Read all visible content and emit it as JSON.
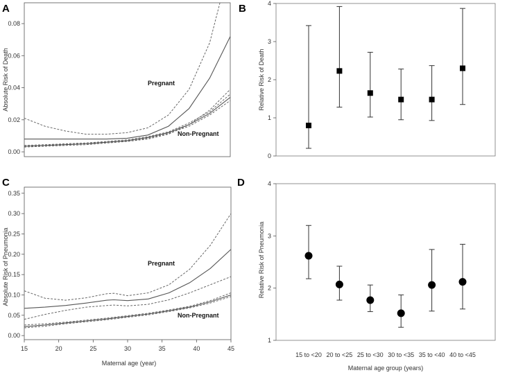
{
  "chart_data": [
    {
      "panel": "A",
      "type": "line",
      "ylabel": "Absolute Risk of Death",
      "xlabel": "",
      "x_ticks": [],
      "y_ticks": [
        "0.00",
        "0.02",
        "0.04",
        "0.06",
        "0.08"
      ],
      "xlim": [
        15,
        45
      ],
      "ylim": [
        -0.003,
        0.093
      ],
      "annotations": [
        "Pregnant",
        "Non-Pregnant"
      ],
      "series": [
        {
          "name": "Pregnant",
          "style": "solid",
          "x": [
            15,
            18,
            21,
            24,
            27,
            30,
            33,
            36,
            39,
            42,
            45
          ],
          "y": [
            0.008,
            0.008,
            0.008,
            0.008,
            0.008,
            0.0085,
            0.0105,
            0.016,
            0.027,
            0.046,
            0.072
          ]
        },
        {
          "name": "Pregnant upper CI",
          "style": "dashed",
          "x": [
            15,
            18,
            21,
            24,
            27,
            30,
            33,
            36,
            39,
            42,
            43.5
          ],
          "y": [
            0.021,
            0.016,
            0.013,
            0.011,
            0.011,
            0.012,
            0.015,
            0.023,
            0.039,
            0.068,
            0.093
          ]
        },
        {
          "name": "Pregnant lower CI",
          "style": "dashed",
          "x": [
            15,
            18,
            21,
            24,
            27,
            30,
            33,
            36,
            39,
            42,
            45
          ],
          "y": [
            0.003,
            0.004,
            0.005,
            0.0055,
            0.006,
            0.0065,
            0.008,
            0.011,
            0.017,
            0.026,
            0.039
          ]
        },
        {
          "name": "Non-Pregnant",
          "style": "solid",
          "x": [
            15,
            18,
            21,
            24,
            27,
            30,
            33,
            36,
            39,
            42,
            45
          ],
          "y": [
            0.0035,
            0.004,
            0.0045,
            0.005,
            0.006,
            0.007,
            0.009,
            0.012,
            0.017,
            0.024,
            0.034
          ]
        },
        {
          "name": "Non-Pregnant upper CI",
          "style": "dashed",
          "x": [
            15,
            18,
            21,
            24,
            27,
            30,
            33,
            36,
            39,
            42,
            45
          ],
          "y": [
            0.004,
            0.0045,
            0.005,
            0.0055,
            0.0065,
            0.0075,
            0.0095,
            0.0125,
            0.018,
            0.025,
            0.036
          ]
        },
        {
          "name": "Non-Pregnant lower CI",
          "style": "dashed",
          "x": [
            15,
            18,
            21,
            24,
            27,
            30,
            33,
            36,
            39,
            42,
            45
          ],
          "y": [
            0.003,
            0.0035,
            0.004,
            0.0045,
            0.0055,
            0.0065,
            0.0085,
            0.0115,
            0.016,
            0.023,
            0.032
          ]
        }
      ]
    },
    {
      "panel": "B",
      "type": "scatter",
      "ylabel": "Relative  Risk of Death",
      "xlabel": "",
      "categories": [
        "15 to <20",
        "20 to <25",
        "25 to <30",
        "30 to <35",
        "35 to <40",
        "40 to <45"
      ],
      "show_category_labels": false,
      "y_ticks": [
        "0",
        "1",
        "2",
        "3",
        "4"
      ],
      "ylim": [
        0,
        4
      ],
      "marker": "square",
      "values": [
        0.8,
        2.23,
        1.65,
        1.48,
        1.48,
        2.3
      ],
      "lower": [
        0.2,
        1.28,
        1.02,
        0.95,
        0.93,
        1.35
      ],
      "upper": [
        3.42,
        3.92,
        2.72,
        2.28,
        2.37,
        3.87
      ]
    },
    {
      "panel": "C",
      "type": "line",
      "ylabel": "Absolute Risk of Pneumonia",
      "xlabel": "Maternal age (year)",
      "x_ticks": [
        "15",
        "20",
        "25",
        "30",
        "35",
        "40",
        "45"
      ],
      "y_ticks": [
        "0.00",
        "0.05",
        "0.10",
        "0.15",
        "0.20",
        "0.25",
        "0.30",
        "0.35"
      ],
      "xlim": [
        15,
        45
      ],
      "ylim": [
        -0.01,
        0.365
      ],
      "annotations": [
        "Pregnant",
        "Non-Pregnant"
      ],
      "series": [
        {
          "name": "Pregnant",
          "style": "solid",
          "x": [
            15,
            18,
            21,
            24,
            27,
            28,
            30,
            33,
            36,
            39,
            42,
            45
          ],
          "y": [
            0.067,
            0.07,
            0.074,
            0.08,
            0.087,
            0.088,
            0.086,
            0.09,
            0.105,
            0.13,
            0.165,
            0.212
          ]
        },
        {
          "name": "Pregnant upper CI",
          "style": "dashed",
          "x": [
            15,
            18,
            21,
            24,
            27,
            28,
            30,
            33,
            36,
            39,
            42,
            45
          ],
          "y": [
            0.11,
            0.092,
            0.087,
            0.093,
            0.103,
            0.104,
            0.098,
            0.105,
            0.125,
            0.163,
            0.222,
            0.3
          ]
        },
        {
          "name": "Pregnant lower CI",
          "style": "dashed",
          "x": [
            15,
            18,
            21,
            24,
            27,
            28,
            30,
            33,
            36,
            39,
            42,
            45
          ],
          "y": [
            0.04,
            0.052,
            0.062,
            0.07,
            0.074,
            0.075,
            0.073,
            0.077,
            0.088,
            0.105,
            0.125,
            0.145
          ]
        },
        {
          "name": "Non-Pregnant",
          "style": "solid",
          "x": [
            15,
            18,
            21,
            24,
            27,
            30,
            33,
            36,
            39,
            42,
            45
          ],
          "y": [
            0.022,
            0.026,
            0.031,
            0.036,
            0.041,
            0.047,
            0.053,
            0.061,
            0.07,
            0.083,
            0.1
          ]
        },
        {
          "name": "Non-Pregnant upper CI",
          "style": "dashed",
          "x": [
            15,
            18,
            21,
            24,
            27,
            30,
            33,
            36,
            39,
            42,
            45
          ],
          "y": [
            0.026,
            0.029,
            0.033,
            0.038,
            0.043,
            0.049,
            0.055,
            0.063,
            0.072,
            0.086,
            0.105
          ]
        },
        {
          "name": "Non-Pregnant lower CI",
          "style": "dashed",
          "x": [
            15,
            18,
            21,
            24,
            27,
            30,
            33,
            36,
            39,
            42,
            45
          ],
          "y": [
            0.019,
            0.023,
            0.029,
            0.034,
            0.039,
            0.045,
            0.051,
            0.059,
            0.068,
            0.08,
            0.096
          ]
        }
      ]
    },
    {
      "panel": "D",
      "type": "scatter",
      "ylabel": "Relative  Risk of Pneumonia",
      "xlabel": "Maternal age group (years)",
      "categories": [
        "15 to <20",
        "20 to <25",
        "25 to <30",
        "30 to <35",
        "35 to <40",
        "40 to <45"
      ],
      "show_category_labels": true,
      "y_ticks": [
        "1",
        "2",
        "3",
        "4"
      ],
      "ylim": [
        1,
        4
      ],
      "marker": "circle",
      "values": [
        2.62,
        2.07,
        1.77,
        1.52,
        2.06,
        2.12
      ],
      "lower": [
        2.18,
        1.77,
        1.55,
        1.25,
        1.56,
        1.6
      ],
      "upper": [
        3.2,
        2.42,
        2.06,
        1.87,
        2.74,
        2.84
      ]
    }
  ]
}
